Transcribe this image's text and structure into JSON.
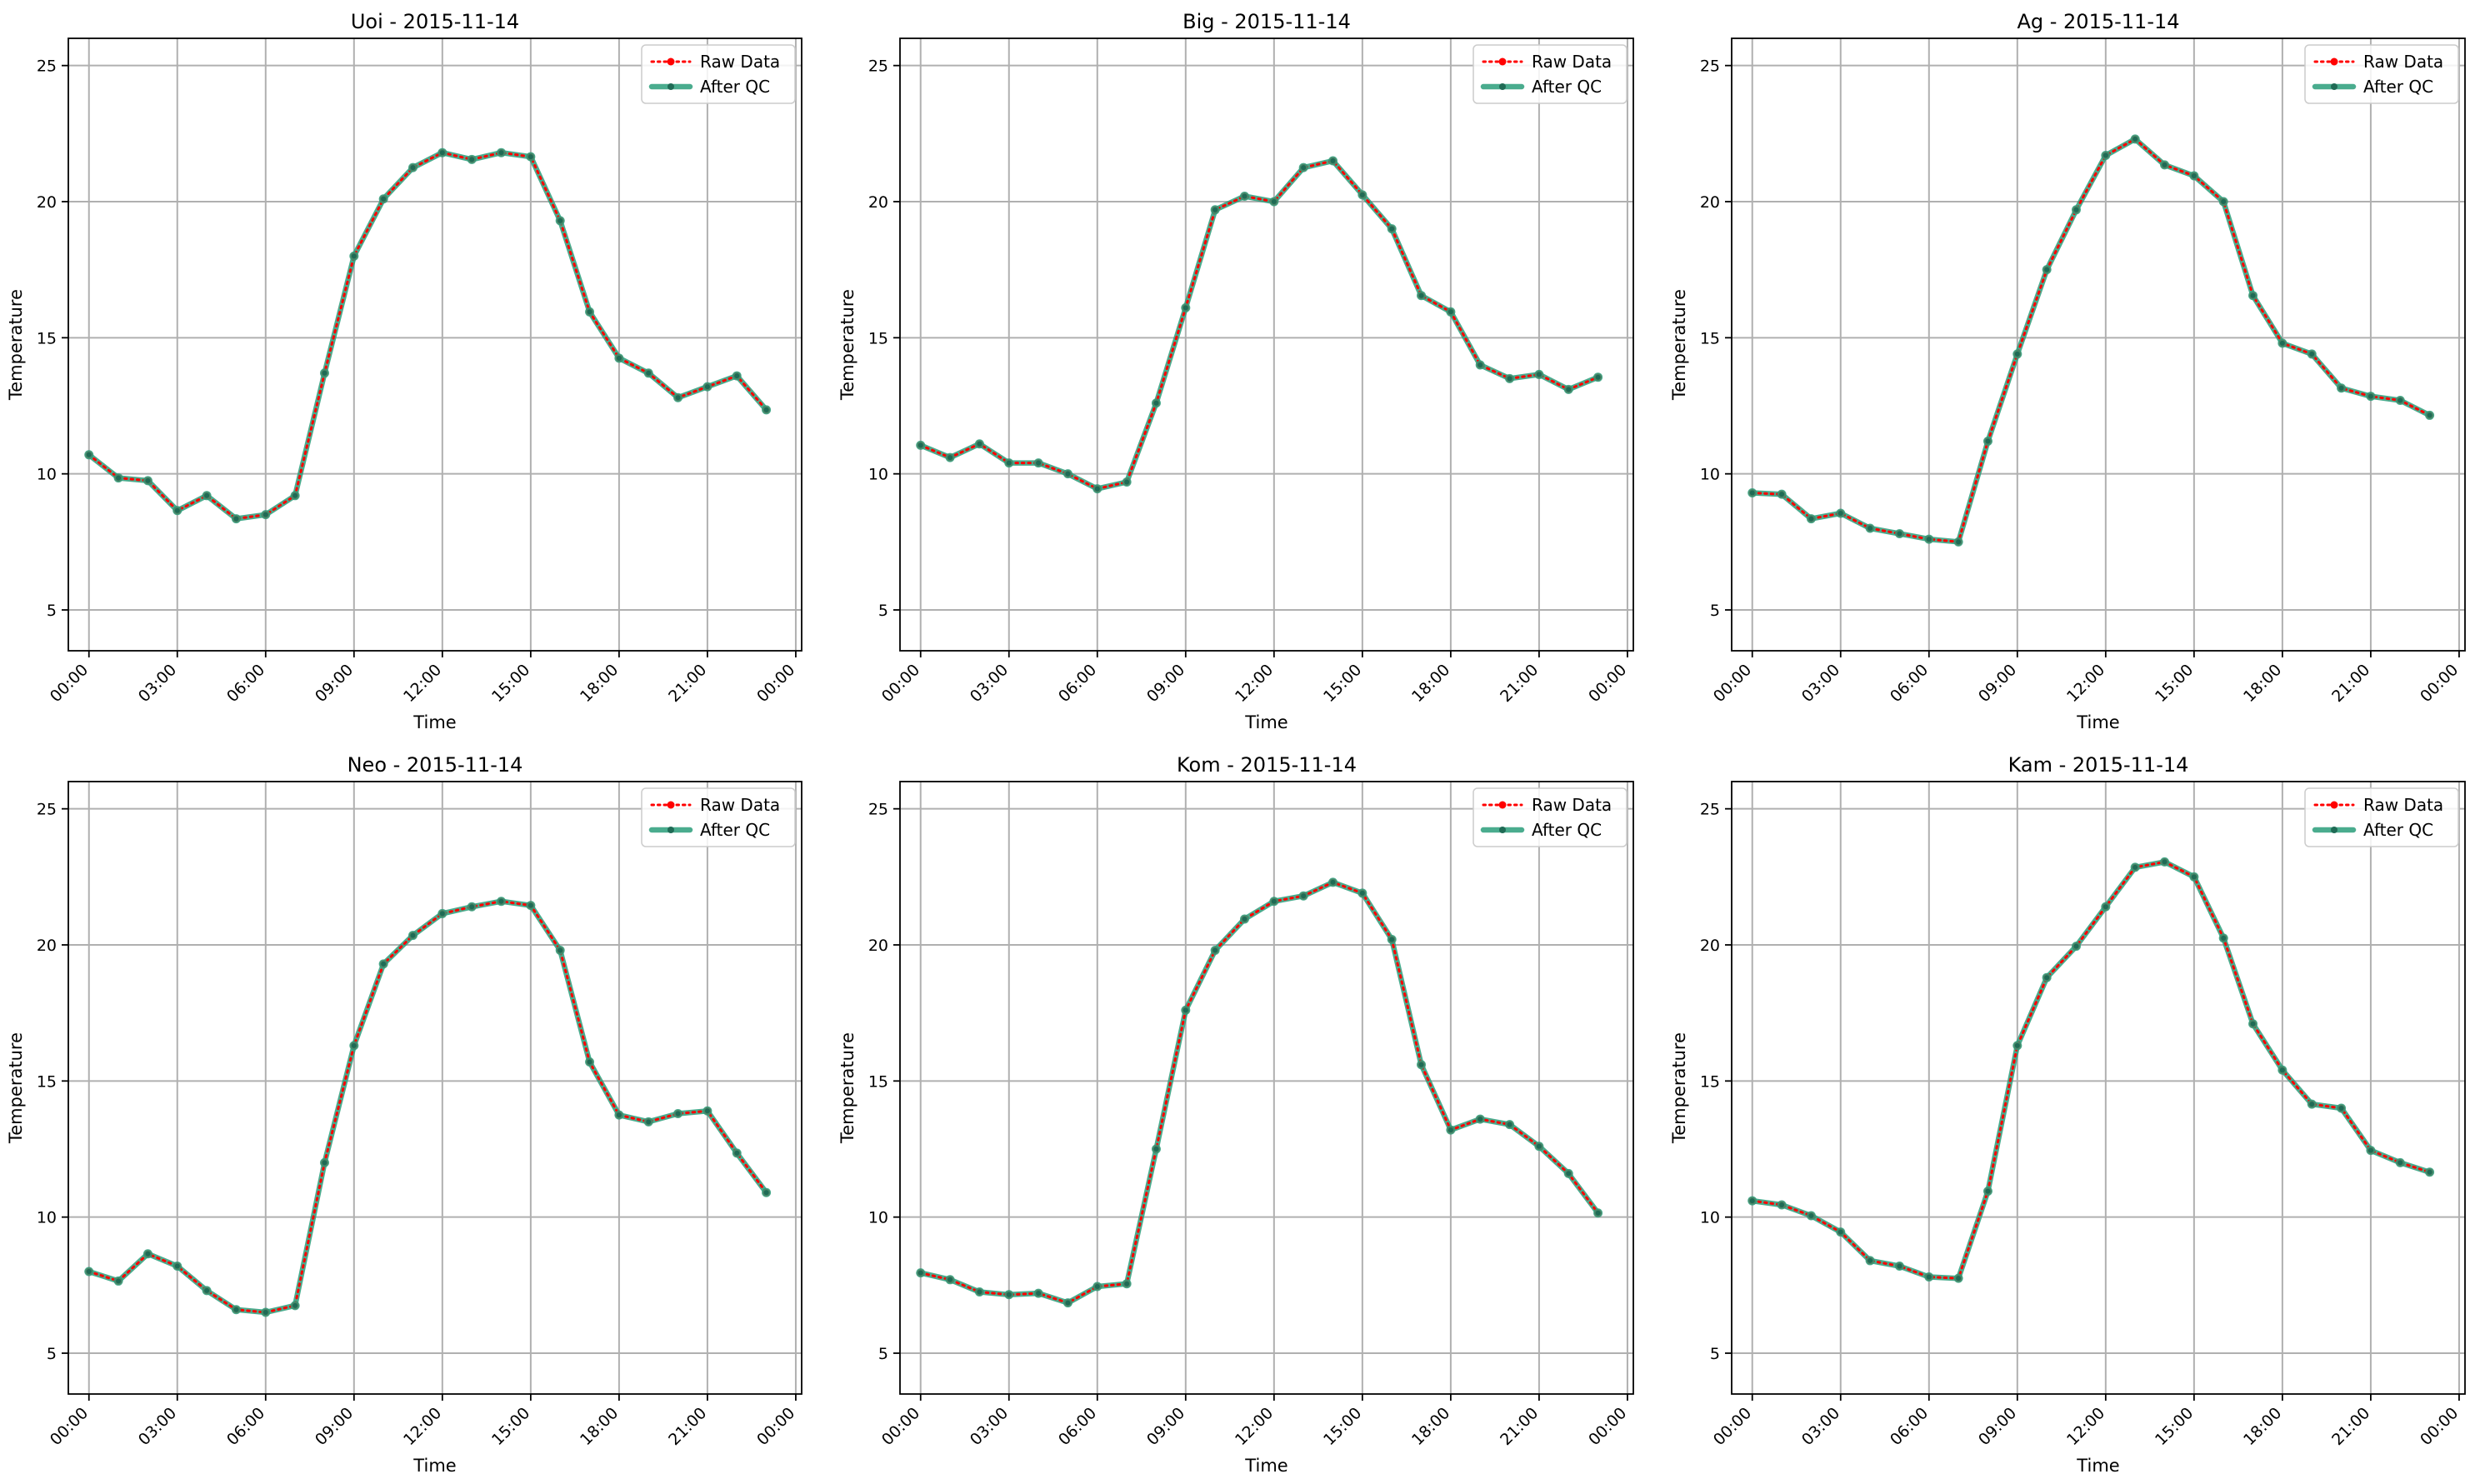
{
  "chart_data": [
    {
      "type": "line",
      "title": "Uoi - 2015-11-14",
      "xlabel": "Time",
      "ylabel": "Temperature",
      "x_ticks": [
        "00:00",
        "03:00",
        "06:00",
        "09:00",
        "12:00",
        "15:00",
        "18:00",
        "21:00",
        "00:00"
      ],
      "y_ticks": [
        5,
        10,
        15,
        20,
        25
      ],
      "ylim": [
        3.5,
        26
      ],
      "xlim_hours": [
        -0.7,
        24.2
      ],
      "x_hours": [
        0,
        1,
        2,
        3,
        4,
        5,
        6,
        7,
        8,
        9,
        10,
        11,
        12,
        13,
        14,
        15,
        16,
        17,
        18,
        19,
        20,
        21,
        22,
        23
      ],
      "legend_position": "upper right",
      "grid": true,
      "series": [
        {
          "name": "Raw Data",
          "color": "#ff0000",
          "style": "dotted-markers",
          "values": [
            10.7,
            9.85,
            9.75,
            8.65,
            9.2,
            8.35,
            8.5,
            9.2,
            13.7,
            18.0,
            20.1,
            21.25,
            21.8,
            21.55,
            21.8,
            21.65,
            19.3,
            15.95,
            14.25,
            13.7,
            12.8,
            13.2,
            13.6,
            12.35
          ]
        },
        {
          "name": "After QC",
          "color": "#2a9d7a",
          "style": "solid-markers",
          "values": [
            10.7,
            9.85,
            9.75,
            8.65,
            9.2,
            8.35,
            8.5,
            9.2,
            13.7,
            18.0,
            20.1,
            21.25,
            21.8,
            21.55,
            21.8,
            21.65,
            19.3,
            15.95,
            14.25,
            13.7,
            12.8,
            13.2,
            13.6,
            12.35
          ]
        }
      ]
    },
    {
      "type": "line",
      "title": "Big - 2015-11-14",
      "xlabel": "Time",
      "ylabel": "Temperature",
      "x_ticks": [
        "00:00",
        "03:00",
        "06:00",
        "09:00",
        "12:00",
        "15:00",
        "18:00",
        "21:00",
        "00:00"
      ],
      "y_ticks": [
        5,
        10,
        15,
        20,
        25
      ],
      "ylim": [
        3.5,
        26
      ],
      "xlim_hours": [
        -0.7,
        24.2
      ],
      "x_hours": [
        0,
        1,
        2,
        3,
        4,
        5,
        6,
        7,
        8,
        9,
        10,
        11,
        12,
        13,
        14,
        15,
        16,
        17,
        18,
        19,
        20,
        21,
        22,
        23
      ],
      "legend_position": "upper right",
      "grid": true,
      "series": [
        {
          "name": "Raw Data",
          "color": "#ff0000",
          "style": "dotted-markers",
          "values": [
            11.05,
            10.6,
            11.1,
            10.4,
            10.4,
            10.0,
            9.45,
            9.7,
            12.6,
            16.1,
            19.7,
            20.2,
            20.0,
            21.25,
            21.5,
            20.25,
            19.0,
            16.55,
            15.95,
            14.0,
            13.5,
            13.65,
            13.1,
            13.55
          ]
        },
        {
          "name": "After QC",
          "color": "#2a9d7a",
          "style": "solid-markers",
          "values": [
            11.05,
            10.6,
            11.1,
            10.4,
            10.4,
            10.0,
            9.45,
            9.7,
            12.6,
            16.1,
            19.7,
            20.2,
            20.0,
            21.25,
            21.5,
            20.25,
            19.0,
            16.55,
            15.95,
            14.0,
            13.5,
            13.65,
            13.1,
            13.55
          ]
        }
      ]
    },
    {
      "type": "line",
      "title": "Ag - 2015-11-14",
      "xlabel": "Time",
      "ylabel": "Temperature",
      "x_ticks": [
        "00:00",
        "03:00",
        "06:00",
        "09:00",
        "12:00",
        "15:00",
        "18:00",
        "21:00",
        "00:00"
      ],
      "y_ticks": [
        5,
        10,
        15,
        20,
        25
      ],
      "ylim": [
        3.5,
        26
      ],
      "xlim_hours": [
        -0.7,
        24.2
      ],
      "x_hours": [
        0,
        1,
        2,
        3,
        4,
        5,
        6,
        7,
        8,
        9,
        10,
        11,
        12,
        13,
        14,
        15,
        16,
        17,
        18,
        19,
        20,
        21,
        22,
        23
      ],
      "legend_position": "upper right",
      "grid": true,
      "series": [
        {
          "name": "Raw Data",
          "color": "#ff0000",
          "style": "dotted-markers",
          "values": [
            9.3,
            9.25,
            8.35,
            8.55,
            8.0,
            7.8,
            7.6,
            7.5,
            11.2,
            14.4,
            17.5,
            19.7,
            21.7,
            22.3,
            21.35,
            20.95,
            20.0,
            16.55,
            14.8,
            14.4,
            13.15,
            12.85,
            12.7,
            12.15
          ]
        },
        {
          "name": "After QC",
          "color": "#2a9d7a",
          "style": "solid-markers",
          "values": [
            9.3,
            9.25,
            8.35,
            8.55,
            8.0,
            7.8,
            7.6,
            7.5,
            11.2,
            14.4,
            17.5,
            19.7,
            21.7,
            22.3,
            21.35,
            20.95,
            20.0,
            16.55,
            14.8,
            14.4,
            13.15,
            12.85,
            12.7,
            12.15
          ]
        }
      ]
    },
    {
      "type": "line",
      "title": "Neo - 2015-11-14",
      "xlabel": "Time",
      "ylabel": "Temperature",
      "x_ticks": [
        "00:00",
        "03:00",
        "06:00",
        "09:00",
        "12:00",
        "15:00",
        "18:00",
        "21:00",
        "00:00"
      ],
      "y_ticks": [
        5,
        10,
        15,
        20,
        25
      ],
      "ylim": [
        3.5,
        26
      ],
      "xlim_hours": [
        -0.7,
        24.2
      ],
      "x_hours": [
        0,
        1,
        2,
        3,
        4,
        5,
        6,
        7,
        8,
        9,
        10,
        11,
        12,
        13,
        14,
        15,
        16,
        17,
        18,
        19,
        20,
        21,
        22,
        23
      ],
      "legend_position": "upper right",
      "grid": true,
      "series": [
        {
          "name": "Raw Data",
          "color": "#ff0000",
          "style": "dotted-markers",
          "values": [
            8.0,
            7.65,
            8.65,
            8.2,
            7.3,
            6.6,
            6.5,
            6.75,
            12.0,
            16.3,
            19.3,
            20.35,
            21.15,
            21.4,
            21.6,
            21.45,
            19.8,
            15.7,
            13.75,
            13.5,
            13.8,
            13.9,
            12.35,
            10.9
          ]
        },
        {
          "name": "After QC",
          "color": "#2a9d7a",
          "style": "solid-markers",
          "values": [
            8.0,
            7.65,
            8.65,
            8.2,
            7.3,
            6.6,
            6.5,
            6.75,
            12.0,
            16.3,
            19.3,
            20.35,
            21.15,
            21.4,
            21.6,
            21.45,
            19.8,
            15.7,
            13.75,
            13.5,
            13.8,
            13.9,
            12.35,
            10.9
          ]
        }
      ]
    },
    {
      "type": "line",
      "title": "Kom - 2015-11-14",
      "xlabel": "Time",
      "ylabel": "Temperature",
      "x_ticks": [
        "00:00",
        "03:00",
        "06:00",
        "09:00",
        "12:00",
        "15:00",
        "18:00",
        "21:00",
        "00:00"
      ],
      "y_ticks": [
        5,
        10,
        15,
        20,
        25
      ],
      "ylim": [
        3.5,
        26
      ],
      "xlim_hours": [
        -0.7,
        24.2
      ],
      "x_hours": [
        0,
        1,
        2,
        3,
        4,
        5,
        6,
        7,
        8,
        9,
        10,
        11,
        12,
        13,
        14,
        15,
        16,
        17,
        18,
        19,
        20,
        21,
        22,
        23
      ],
      "legend_position": "upper right",
      "grid": true,
      "series": [
        {
          "name": "Raw Data",
          "color": "#ff0000",
          "style": "dotted-markers",
          "values": [
            7.95,
            7.7,
            7.25,
            7.15,
            7.2,
            6.85,
            7.45,
            7.55,
            12.5,
            17.6,
            19.8,
            20.95,
            21.6,
            21.8,
            22.3,
            21.9,
            20.2,
            15.6,
            13.2,
            13.6,
            13.4,
            12.6,
            11.6,
            10.15
          ]
        },
        {
          "name": "After QC",
          "color": "#2a9d7a",
          "style": "solid-markers",
          "values": [
            7.95,
            7.7,
            7.25,
            7.15,
            7.2,
            6.85,
            7.45,
            7.55,
            12.5,
            17.6,
            19.8,
            20.95,
            21.6,
            21.8,
            22.3,
            21.9,
            20.2,
            15.6,
            13.2,
            13.6,
            13.4,
            12.6,
            11.6,
            10.15
          ]
        }
      ]
    },
    {
      "type": "line",
      "title": "Kam - 2015-11-14",
      "xlabel": "Time",
      "ylabel": "Temperature",
      "x_ticks": [
        "00:00",
        "03:00",
        "06:00",
        "09:00",
        "12:00",
        "15:00",
        "18:00",
        "21:00",
        "00:00"
      ],
      "y_ticks": [
        5,
        10,
        15,
        20,
        25
      ],
      "ylim": [
        3.5,
        26
      ],
      "xlim_hours": [
        -0.7,
        24.2
      ],
      "x_hours": [
        0,
        1,
        2,
        3,
        4,
        5,
        6,
        7,
        8,
        9,
        10,
        11,
        12,
        13,
        14,
        15,
        16,
        17,
        18,
        19,
        20,
        21,
        22,
        23
      ],
      "legend_position": "upper right",
      "grid": true,
      "series": [
        {
          "name": "Raw Data",
          "color": "#ff0000",
          "style": "dotted-markers",
          "values": [
            10.6,
            10.45,
            10.05,
            9.45,
            8.4,
            8.2,
            7.8,
            7.75,
            10.95,
            16.3,
            18.8,
            19.95,
            21.4,
            22.85,
            23.05,
            22.5,
            20.25,
            17.1,
            15.4,
            14.15,
            14.0,
            12.45,
            12.0,
            11.65
          ]
        },
        {
          "name": "After QC",
          "color": "#2a9d7a",
          "style": "solid-markers",
          "values": [
            10.6,
            10.45,
            10.05,
            9.45,
            8.4,
            8.2,
            7.8,
            7.75,
            10.95,
            16.3,
            18.8,
            19.95,
            21.4,
            22.85,
            23.05,
            22.5,
            20.25,
            17.1,
            15.4,
            14.15,
            14.0,
            12.45,
            12.0,
            11.65
          ]
        }
      ]
    }
  ]
}
